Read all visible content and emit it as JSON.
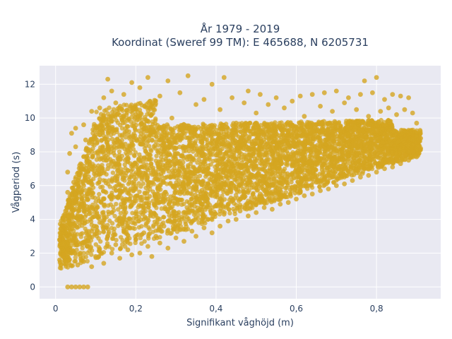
{
  "chart_data": {
    "type": "scatter",
    "title_line1": "År 1979 - 2019",
    "title_line2": "Koordinat (Sweref 99 TM): E 465688, N 6205731",
    "xlabel": "Signifikant våghöjd (m)",
    "ylabel": "Vågperiod (s)",
    "xlim": [
      -0.04,
      0.96
    ],
    "ylim": [
      -0.7,
      13.1
    ],
    "xticks": [
      0,
      0.2,
      0.4,
      0.6,
      0.8
    ],
    "xtick_labels": [
      "0",
      "0,2",
      "0,4",
      "0,6",
      "0,8"
    ],
    "yticks": [
      0,
      2,
      4,
      6,
      8,
      10,
      12
    ],
    "ytick_labels": [
      "0",
      "2",
      "4",
      "6",
      "8",
      "10",
      "12"
    ],
    "grid": true,
    "marker_color": "#d4a520",
    "plot_bg": "#e9e9f2",
    "series": [
      {
        "points": [
          [
            0.01,
            1.6
          ],
          [
            0.01,
            2.8
          ],
          [
            0.02,
            1.9
          ],
          [
            0.02,
            3.6
          ],
          [
            0.025,
            4.5
          ],
          [
            0.03,
            2.2
          ],
          [
            0.03,
            5.6
          ],
          [
            0.03,
            6.8
          ],
          [
            0.03,
            0.0
          ],
          [
            0.035,
            3.1
          ],
          [
            0.035,
            7.9
          ],
          [
            0.04,
            0.0
          ],
          [
            0.04,
            4.2
          ],
          [
            0.04,
            9.1
          ],
          [
            0.045,
            6.2
          ],
          [
            0.05,
            0.0
          ],
          [
            0.05,
            2.6
          ],
          [
            0.05,
            5.1
          ],
          [
            0.05,
            8.3
          ],
          [
            0.05,
            9.4
          ],
          [
            0.055,
            1.3
          ],
          [
            0.06,
            0.0
          ],
          [
            0.06,
            3.8
          ],
          [
            0.06,
            7.2
          ],
          [
            0.065,
            4.9
          ],
          [
            0.07,
            0.0
          ],
          [
            0.07,
            1.5
          ],
          [
            0.07,
            6.0
          ],
          [
            0.07,
            9.6
          ],
          [
            0.075,
            8.7
          ],
          [
            0.08,
            0.0
          ],
          [
            0.08,
            2.4
          ],
          [
            0.08,
            5.5
          ],
          [
            0.085,
            7.4
          ],
          [
            0.09,
            1.2
          ],
          [
            0.09,
            3.3
          ],
          [
            0.09,
            10.4
          ],
          [
            0.1,
            1.8
          ],
          [
            0.1,
            4.6
          ],
          [
            0.1,
            6.6
          ],
          [
            0.1,
            9.0
          ],
          [
            0.11,
            2.1
          ],
          [
            0.11,
            8.1
          ],
          [
            0.11,
            10.6
          ],
          [
            0.12,
            1.4
          ],
          [
            0.12,
            5.2
          ],
          [
            0.12,
            11.2
          ],
          [
            0.13,
            3.0
          ],
          [
            0.13,
            7.0
          ],
          [
            0.13,
            12.3
          ],
          [
            0.14,
            2.0
          ],
          [
            0.14,
            9.8
          ],
          [
            0.14,
            11.6
          ],
          [
            0.15,
            2.5
          ],
          [
            0.15,
            6.3
          ],
          [
            0.15,
            10.9
          ],
          [
            0.16,
            1.7
          ],
          [
            0.16,
            4.1
          ],
          [
            0.16,
            8.6
          ],
          [
            0.17,
            3.4
          ],
          [
            0.17,
            11.4
          ],
          [
            0.18,
            2.2
          ],
          [
            0.18,
            6.9
          ],
          [
            0.18,
            9.5
          ],
          [
            0.19,
            1.9
          ],
          [
            0.19,
            12.1
          ],
          [
            0.2,
            2.8
          ],
          [
            0.2,
            5.8
          ],
          [
            0.2,
            10.2
          ],
          [
            0.21,
            2.0
          ],
          [
            0.21,
            11.8
          ],
          [
            0.22,
            3.2
          ],
          [
            0.22,
            7.6
          ],
          [
            0.23,
            2.4
          ],
          [
            0.23,
            12.4
          ],
          [
            0.24,
            1.8
          ],
          [
            0.24,
            9.2
          ],
          [
            0.25,
            3.0
          ],
          [
            0.25,
            6.4
          ],
          [
            0.26,
            2.6
          ],
          [
            0.26,
            11.3
          ],
          [
            0.27,
            3.6
          ],
          [
            0.27,
            8.8
          ],
          [
            0.28,
            2.3
          ],
          [
            0.28,
            12.2
          ],
          [
            0.29,
            4.2
          ],
          [
            0.29,
            10.0
          ],
          [
            0.3,
            2.9
          ],
          [
            0.3,
            7.3
          ],
          [
            0.31,
            3.8
          ],
          [
            0.31,
            11.5
          ],
          [
            0.32,
            2.7
          ],
          [
            0.32,
            9.6
          ],
          [
            0.33,
            4.4
          ],
          [
            0.33,
            12.5
          ],
          [
            0.34,
            3.3
          ],
          [
            0.34,
            8.2
          ],
          [
            0.35,
            3.0
          ],
          [
            0.35,
            10.8
          ],
          [
            0.36,
            4.6
          ],
          [
            0.36,
            6.9
          ],
          [
            0.37,
            3.5
          ],
          [
            0.37,
            11.1
          ],
          [
            0.38,
            4.0
          ],
          [
            0.38,
            9.3
          ],
          [
            0.39,
            3.2
          ],
          [
            0.39,
            12.0
          ],
          [
            0.4,
            4.8
          ],
          [
            0.4,
            7.8
          ],
          [
            0.41,
            3.6
          ],
          [
            0.41,
            10.5
          ],
          [
            0.42,
            4.3
          ],
          [
            0.42,
            12.4
          ],
          [
            0.43,
            3.9
          ],
          [
            0.43,
            8.9
          ],
          [
            0.44,
            5.1
          ],
          [
            0.44,
            11.2
          ],
          [
            0.45,
            4.0
          ],
          [
            0.45,
            9.7
          ],
          [
            0.46,
            4.5
          ],
          [
            0.46,
            7.2
          ],
          [
            0.47,
            5.3
          ],
          [
            0.47,
            10.9
          ],
          [
            0.48,
            4.2
          ],
          [
            0.48,
            11.6
          ],
          [
            0.49,
            5.0
          ],
          [
            0.49,
            8.6
          ],
          [
            0.5,
            4.4
          ],
          [
            0.5,
            10.3
          ],
          [
            0.51,
            5.5
          ],
          [
            0.51,
            11.4
          ],
          [
            0.52,
            4.7
          ],
          [
            0.52,
            9.0
          ],
          [
            0.53,
            5.2
          ],
          [
            0.53,
            10.8
          ],
          [
            0.54,
            4.6
          ],
          [
            0.54,
            8.3
          ],
          [
            0.55,
            5.7
          ],
          [
            0.55,
            11.2
          ],
          [
            0.56,
            4.9
          ],
          [
            0.56,
            9.4
          ],
          [
            0.57,
            5.4
          ],
          [
            0.57,
            10.6
          ],
          [
            0.58,
            5.0
          ],
          [
            0.58,
            8.8
          ],
          [
            0.59,
            5.9
          ],
          [
            0.59,
            11.0
          ],
          [
            0.6,
            5.2
          ],
          [
            0.6,
            9.2
          ],
          [
            0.61,
            5.6
          ],
          [
            0.61,
            11.3
          ],
          [
            0.62,
            5.4
          ],
          [
            0.62,
            10.1
          ],
          [
            0.63,
            6.0
          ],
          [
            0.63,
            8.9
          ],
          [
            0.64,
            5.5
          ],
          [
            0.64,
            11.4
          ],
          [
            0.65,
            6.2
          ],
          [
            0.65,
            9.6
          ],
          [
            0.66,
            5.7
          ],
          [
            0.66,
            10.7
          ],
          [
            0.67,
            6.4
          ],
          [
            0.67,
            11.5
          ],
          [
            0.68,
            5.8
          ],
          [
            0.68,
            9.1
          ],
          [
            0.69,
            6.5
          ],
          [
            0.69,
            10.4
          ],
          [
            0.7,
            6.0
          ],
          [
            0.7,
            11.6
          ],
          [
            0.71,
            6.7
          ],
          [
            0.71,
            9.5
          ],
          [
            0.72,
            6.1
          ],
          [
            0.72,
            10.9
          ],
          [
            0.73,
            6.8
          ],
          [
            0.73,
            11.2
          ],
          [
            0.74,
            6.3
          ],
          [
            0.74,
            9.8
          ],
          [
            0.75,
            6.9
          ],
          [
            0.75,
            10.5
          ],
          [
            0.76,
            6.5
          ],
          [
            0.76,
            11.4
          ],
          [
            0.77,
            7.0
          ],
          [
            0.77,
            12.2
          ],
          [
            0.78,
            6.6
          ],
          [
            0.78,
            10.1
          ],
          [
            0.79,
            7.2
          ],
          [
            0.79,
            11.5
          ],
          [
            0.8,
            6.8
          ],
          [
            0.8,
            12.4
          ],
          [
            0.81,
            7.3
          ],
          [
            0.81,
            10.4
          ],
          [
            0.82,
            7.0
          ],
          [
            0.82,
            11.1
          ],
          [
            0.83,
            7.5
          ],
          [
            0.83,
            10.6
          ],
          [
            0.84,
            7.1
          ],
          [
            0.84,
            11.4
          ],
          [
            0.85,
            7.6
          ],
          [
            0.85,
            10.2
          ],
          [
            0.86,
            7.3
          ],
          [
            0.86,
            11.3
          ],
          [
            0.87,
            7.8
          ],
          [
            0.87,
            10.5
          ],
          [
            0.88,
            7.5
          ],
          [
            0.88,
            11.2
          ],
          [
            0.89,
            8.0
          ],
          [
            0.89,
            10.3
          ],
          [
            0.9,
            7.7
          ],
          [
            0.9,
            9.7
          ],
          [
            0.91,
            8.2
          ],
          [
            0.91,
            8.8
          ]
        ]
      }
    ]
  }
}
